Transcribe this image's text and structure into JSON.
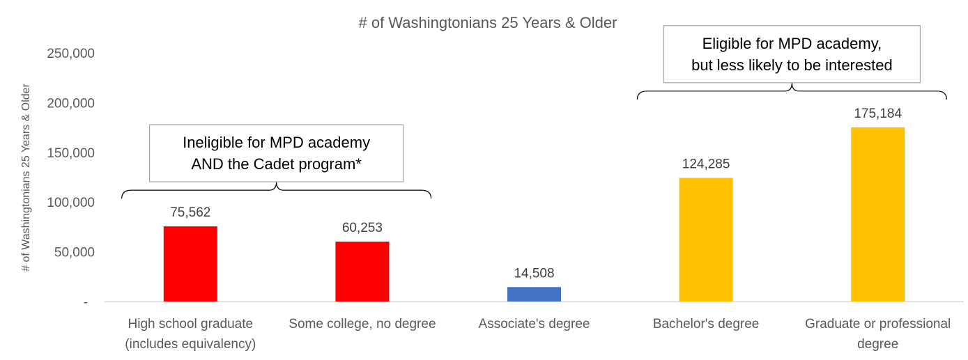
{
  "chart_data": {
    "type": "bar",
    "title": "# of Washingtonians 25 Years & Older",
    "ylabel": "# of Washingtonians 25 Years & Older",
    "xlabel": "",
    "ylim": [
      0,
      250000
    ],
    "yticks": [
      {
        "value": 0,
        "label": "-"
      },
      {
        "value": 50000,
        "label": "50,000"
      },
      {
        "value": 100000,
        "label": "100,000"
      },
      {
        "value": 150000,
        "label": "150,000"
      },
      {
        "value": 200000,
        "label": "200,000"
      },
      {
        "value": 250000,
        "label": "250,000"
      }
    ],
    "grid": false,
    "categories": [
      [
        "High school graduate",
        "(includes equivalency)"
      ],
      [
        "Some college, no degree"
      ],
      [
        "Associate's degree"
      ],
      [
        "Bachelor's degree"
      ],
      [
        "Graduate or professional",
        "degree"
      ]
    ],
    "values": [
      75562,
      60253,
      14508,
      124285,
      175184
    ],
    "data_labels": [
      "75,562",
      "60,253",
      "14,508",
      "124,285",
      "175,184"
    ],
    "bar_colors": [
      "#ff0000",
      "#ff0000",
      "#4472c4",
      "#ffc000",
      "#ffc000"
    ],
    "annotations": [
      {
        "lines": [
          "Ineligible for MPD academy",
          "AND the Cadet program*"
        ],
        "spans": [
          0,
          1
        ]
      },
      {
        "lines": [
          "Eligible for MPD academy,",
          "but less likely to be interested"
        ],
        "spans": [
          3,
          4
        ]
      }
    ]
  }
}
